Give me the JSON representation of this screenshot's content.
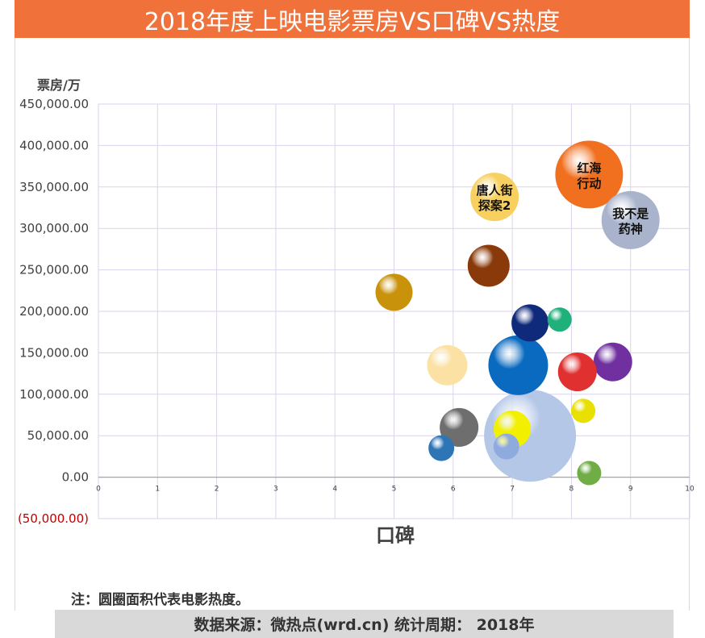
{
  "title": "2018年度上映电影票房VS口碑VS热度",
  "note": "注：圆圈面积代表电影热度。",
  "source": "数据来源：微热点(wrd.cn)  统计周期：  2018年",
  "chart_data": {
    "type": "bubble",
    "title": "2018年度上映电影票房VS口碑VS热度",
    "xlabel": "口碑",
    "ylabel": "票房/万",
    "xlim": [
      0,
      10
    ],
    "ylim": [
      -50000,
      450000
    ],
    "x_ticks": [
      "0",
      "1",
      "2",
      "3",
      "4",
      "5",
      "6",
      "7",
      "8",
      "9",
      "10"
    ],
    "y_ticks": [
      "450,000.00",
      "400,000.00",
      "350,000.00",
      "300,000.00",
      "250,000.00",
      "200,000.00",
      "150,000.00",
      "100,000.00",
      "50,000.00",
      "0.00",
      "(50,000.00)"
    ],
    "points": [
      {
        "label": "",
        "x": 7.3,
        "y": 50000,
        "size": 57,
        "color": "#b4c7e7"
      },
      {
        "label": "红海行动",
        "x": 8.3,
        "y": 365000,
        "size": 42,
        "color": "#f07020"
      },
      {
        "label": "我不是药神",
        "x": 9.0,
        "y": 310000,
        "size": 36,
        "color": "#a9b4cc"
      },
      {
        "label": "",
        "x": 7.1,
        "y": 135000,
        "size": 37,
        "color": "#0a6ac0"
      },
      {
        "label": "唐人街探案2",
        "x": 6.7,
        "y": 338000,
        "size": 30,
        "color": "#f7d060"
      },
      {
        "label": "",
        "x": 6.6,
        "y": 255000,
        "size": 26,
        "color": "#8a3a0a"
      },
      {
        "label": "",
        "x": 5.0,
        "y": 223000,
        "size": 23,
        "color": "#c8920a"
      },
      {
        "label": "",
        "x": 5.9,
        "y": 135000,
        "size": 25,
        "color": "#fbe1a4"
      },
      {
        "label": "",
        "x": 7.3,
        "y": 186000,
        "size": 23,
        "color": "#0f2a7a"
      },
      {
        "label": "",
        "x": 7.8,
        "y": 190000,
        "size": 15,
        "color": "#1fb07c"
      },
      {
        "label": "",
        "x": 8.7,
        "y": 139000,
        "size": 24,
        "color": "#7030a0"
      },
      {
        "label": "",
        "x": 8.1,
        "y": 127000,
        "size": 24,
        "color": "#e03030"
      },
      {
        "label": "",
        "x": 6.1,
        "y": 60000,
        "size": 24,
        "color": "#6e6e6e"
      },
      {
        "label": "",
        "x": 7.0,
        "y": 58000,
        "size": 23,
        "color": "#f2f000"
      },
      {
        "label": "",
        "x": 8.2,
        "y": 80000,
        "size": 15,
        "color": "#e8e000"
      },
      {
        "label": "",
        "x": 5.8,
        "y": 35000,
        "size": 16,
        "color": "#2e75b6"
      },
      {
        "label": "",
        "x": 6.9,
        "y": 37000,
        "size": 16,
        "color": "#8faadc"
      },
      {
        "label": "",
        "x": 8.3,
        "y": 5000,
        "size": 15,
        "color": "#70ad47"
      }
    ]
  }
}
